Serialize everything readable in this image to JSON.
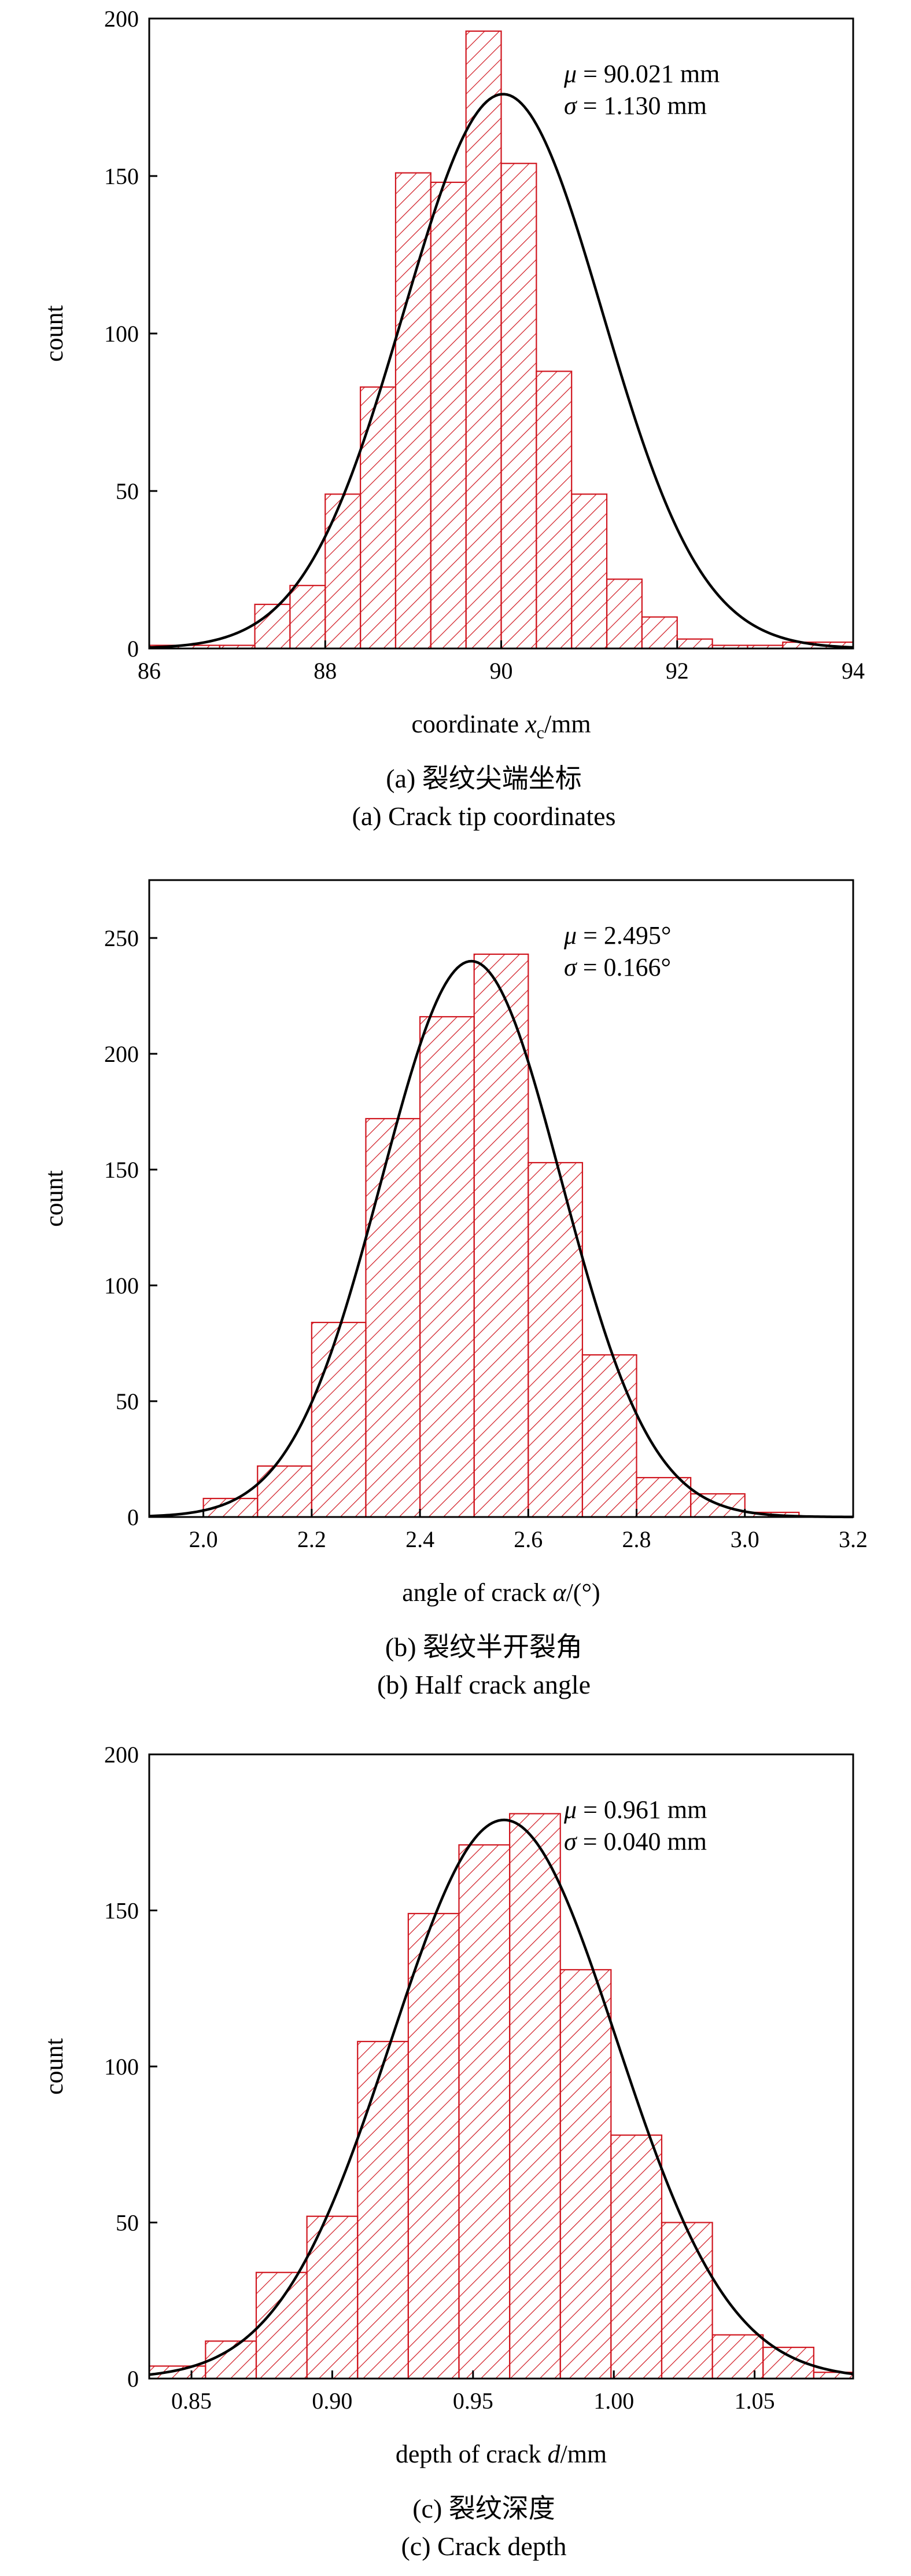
{
  "chart_data": [
    {
      "type": "bar",
      "caption_cn": "(a) 裂纹尖端坐标",
      "caption_en": "(a) Crack tip coordinates",
      "xlabel": "coordinate",
      "xlabel_var": "x",
      "xlabel_sub": "c",
      "xlabel_unit": "/mm",
      "ylabel": "count",
      "xlim": [
        86,
        94
      ],
      "ylim": [
        0,
        200
      ],
      "xticks": [
        86,
        88,
        90,
        92,
        94
      ],
      "xtick_labels": [
        "86",
        "88",
        "90",
        "92",
        "94"
      ],
      "yticks": [
        0,
        50,
        100,
        150,
        200
      ],
      "ytick_labels": [
        "0",
        "50",
        "100",
        "150",
        "200"
      ],
      "bin_edges": [
        86.0,
        86.8,
        87.2,
        87.6,
        88.0,
        88.4,
        88.8,
        89.2,
        89.6,
        90.0,
        90.4,
        90.8,
        91.2,
        91.6,
        92.0,
        92.4,
        92.8,
        93.2,
        94.0
      ],
      "counts": [
        1,
        1,
        14,
        20,
        49,
        83,
        151,
        148,
        196,
        154,
        88,
        49,
        22,
        10,
        3,
        1,
        1,
        2
      ],
      "annotation": {
        "mu_symbol": "μ",
        "mu_text": " = 90.021 mm",
        "sigma_symbol": "σ",
        "sigma_text": " = 1.130 mm"
      },
      "fit": {
        "mu": 90.021,
        "sigma": 1.13,
        "peak": 176
      },
      "colors": {
        "bar_edge": "#d0161f",
        "hatch": "#d0161f",
        "curve": "#000000"
      }
    },
    {
      "type": "bar",
      "caption_cn": "(b) 裂纹半开裂角",
      "caption_en": "(b) Half crack angle",
      "xlabel": "angle of crack",
      "xlabel_var": "α",
      "xlabel_sub": "",
      "xlabel_unit": "/(°)",
      "ylabel": "count",
      "xlim": [
        1.9,
        3.2
      ],
      "ylim": [
        0,
        275
      ],
      "xticks": [
        2.0,
        2.2,
        2.4,
        2.6,
        2.8,
        3.0,
        3.2
      ],
      "xtick_labels": [
        "2.0",
        "2.2",
        "2.4",
        "2.6",
        "2.8",
        "3.0",
        "3.2"
      ],
      "yticks": [
        0,
        50,
        100,
        150,
        200,
        250
      ],
      "ytick_labels": [
        "0",
        "50",
        "100",
        "150",
        "200",
        "250"
      ],
      "bin_edges": [
        2.0,
        2.1,
        2.2,
        2.3,
        2.4,
        2.5,
        2.6,
        2.7,
        2.8,
        2.9,
        3.0,
        3.1
      ],
      "counts": [
        8,
        22,
        84,
        172,
        216,
        243,
        153,
        70,
        17,
        10,
        2
      ],
      "annotation": {
        "mu_symbol": "μ",
        "mu_text": " = 2.495°",
        "sigma_symbol": "σ",
        "sigma_text": " = 0.166°"
      },
      "fit": {
        "mu": 2.495,
        "sigma": 0.166,
        "peak": 240
      },
      "colors": {
        "bar_edge": "#d0161f",
        "hatch": "#d0161f",
        "curve": "#000000"
      }
    },
    {
      "type": "bar",
      "caption_cn": "(c) 裂纹深度",
      "caption_en": "(c) Crack depth",
      "xlabel": "depth of crack",
      "xlabel_var": "d",
      "xlabel_sub": "",
      "xlabel_unit": "/mm",
      "ylabel": "count",
      "xlim": [
        0.835,
        1.085
      ],
      "ylim": [
        0,
        200
      ],
      "xticks": [
        0.85,
        0.9,
        0.95,
        1.0,
        1.05
      ],
      "xtick_labels": [
        "0.85",
        "0.90",
        "0.95",
        "1.00",
        "1.05"
      ],
      "yticks": [
        0,
        50,
        100,
        150,
        200
      ],
      "ytick_labels": [
        "0",
        "50",
        "100",
        "150",
        "200"
      ],
      "bin_edges": [
        0.835,
        0.855,
        0.873,
        0.891,
        0.909,
        0.927,
        0.945,
        0.963,
        0.981,
        0.999,
        1.017,
        1.035,
        1.053,
        1.071,
        1.085
      ],
      "counts": [
        4,
        12,
        34,
        52,
        108,
        149,
        171,
        181,
        131,
        78,
        50,
        14,
        10,
        2
      ],
      "annotation": {
        "mu_symbol": "μ",
        "mu_text": " = 0.961 mm",
        "sigma_symbol": "σ",
        "sigma_text": " = 0.040 mm"
      },
      "fit": {
        "mu": 0.961,
        "sigma": 0.04,
        "peak": 179
      },
      "colors": {
        "bar_edge": "#d0161f",
        "hatch": "#d0161f",
        "curve": "#000000"
      }
    }
  ]
}
